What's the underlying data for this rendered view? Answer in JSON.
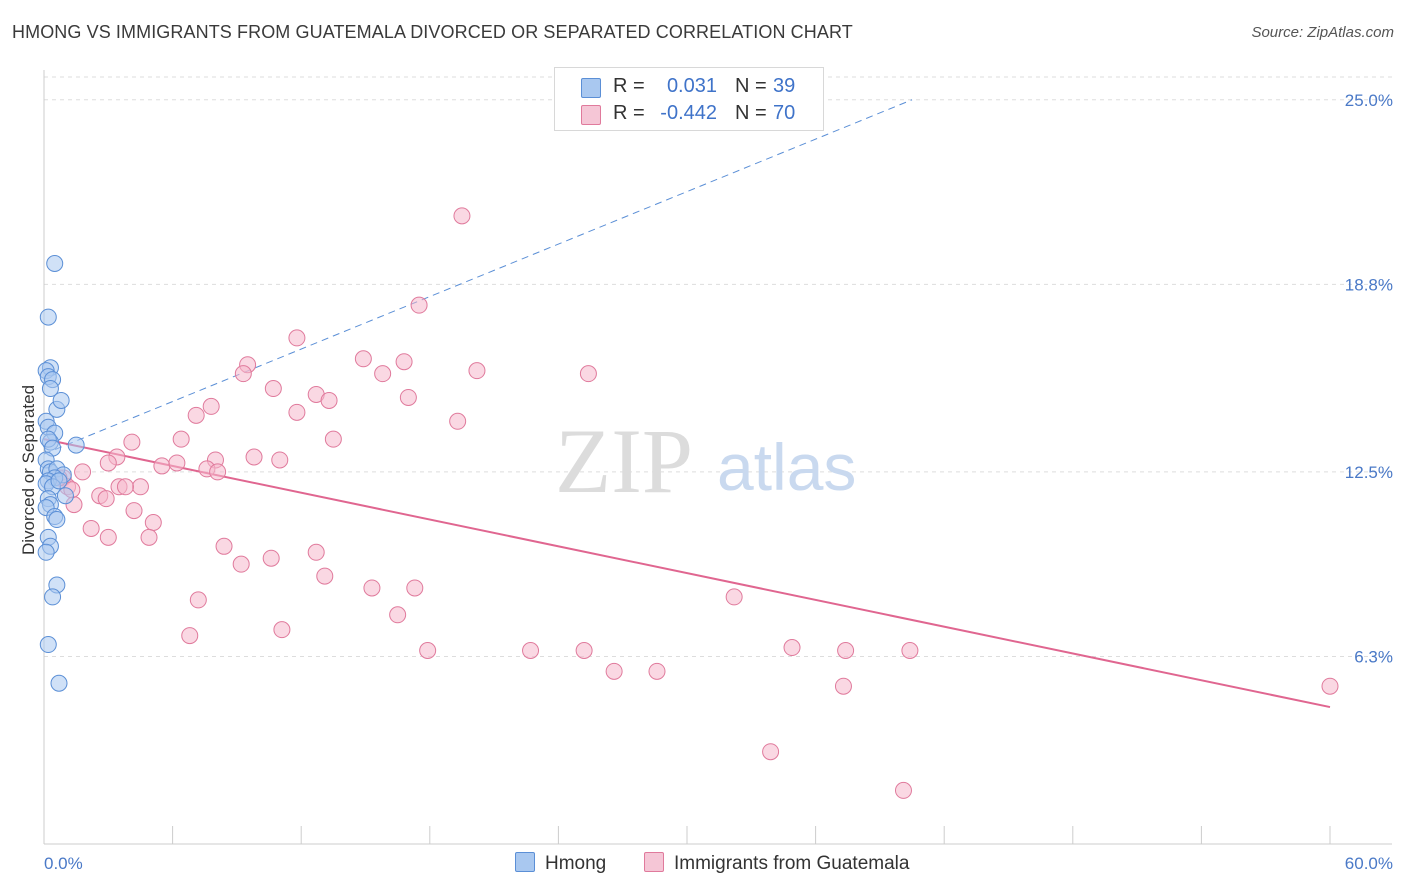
{
  "title": "HMONG VS IMMIGRANTS FROM GUATEMALA DIVORCED OR SEPARATED CORRELATION CHART",
  "source": "Source: ZipAtlas.com",
  "watermark": {
    "zip": "ZIP",
    "atlas": "atlas"
  },
  "legend": {
    "rows": [
      {
        "r_label": "R =",
        "r_value": "0.031",
        "n_label": "N =",
        "n_value": "39"
      },
      {
        "r_label": "R =",
        "r_value": "-0.442",
        "n_label": "N =",
        "n_value": "70"
      }
    ]
  },
  "bottom_legend": {
    "hmong": "Hmong",
    "guatemala": "Immigrants from Guatemala"
  },
  "colors": {
    "hmong_fill": "#a9c8f0",
    "hmong_stroke": "#5b8fd6",
    "hmong_trend": "#5b8fd6",
    "guatemala_fill": "#f5b8cc",
    "guatemala_stroke": "#e07a9c",
    "guatemala_trend": "#e06690",
    "tick_text": "#4a79c7",
    "grid": "#dddddd"
  },
  "chart_data": {
    "type": "scatter",
    "title": "HMONG VS IMMIGRANTS FROM GUATEMALA DIVORCED OR SEPARATED CORRELATION CHART",
    "xlabel": "",
    "ylabel": "Divorced or Separated",
    "xlim": [
      0,
      60
    ],
    "ylim": [
      0,
      26
    ],
    "x_tick_labels": [
      "0.0%",
      "60.0%"
    ],
    "y_ticks": [
      6.3,
      12.5,
      18.8,
      25.0
    ],
    "y_tick_labels": [
      "6.3%",
      "12.5%",
      "18.8%",
      "25.0%"
    ],
    "grid": true,
    "legend_placement": "top-center",
    "series": [
      {
        "name": "Hmong",
        "r": 0.031,
        "n": 39,
        "trend": {
          "x": [
            0,
            40.5
          ],
          "y": [
            13.1,
            25.0
          ],
          "style": "dashed"
        },
        "x": [
          0.5,
          0.2,
          0.3,
          0.1,
          0.2,
          0.4,
          0.3,
          0.6,
          0.1,
          0.2,
          0.5,
          0.8,
          1.5,
          0.3,
          0.2,
          0.4,
          0.1,
          0.2,
          0.3,
          0.6,
          0.9,
          0.5,
          0.2,
          0.1,
          0.4,
          0.7,
          1.0,
          0.2,
          0.3,
          0.1,
          0.5,
          0.6,
          0.2,
          0.3,
          0.1,
          0.6,
          0.4,
          0.2,
          0.7
        ],
        "y": [
          19.5,
          17.7,
          16.0,
          15.9,
          15.7,
          15.6,
          15.3,
          14.6,
          14.2,
          14.0,
          13.8,
          14.9,
          13.4,
          13.5,
          13.6,
          13.3,
          12.9,
          12.6,
          12.5,
          12.6,
          12.4,
          12.3,
          12.2,
          12.1,
          12.0,
          12.2,
          11.7,
          11.6,
          11.4,
          11.3,
          11.0,
          10.9,
          10.3,
          10.0,
          9.8,
          8.7,
          8.3,
          6.7,
          5.4
        ]
      },
      {
        "name": "Immigrants from Guatemala",
        "r": -0.442,
        "n": 70,
        "trend": {
          "x": [
            0,
            60
          ],
          "y": [
            13.6,
            4.6
          ],
          "style": "solid"
        },
        "x": [
          19.5,
          17.5,
          11.8,
          9.5,
          16.8,
          14.9,
          9.3,
          15.8,
          20.2,
          25.4,
          19.3,
          10.7,
          12.7,
          7.1,
          11.8,
          13.3,
          17.0,
          7.8,
          13.5,
          3.4,
          4.1,
          8.0,
          7.6,
          3.0,
          5.5,
          6.2,
          4.5,
          0.9,
          1.8,
          1.1,
          3.5,
          2.6,
          2.9,
          1.4,
          0.7,
          1.3,
          3.8,
          4.2,
          8.1,
          11.0,
          9.8,
          6.4,
          5.1,
          2.2,
          4.9,
          3.0,
          8.4,
          10.6,
          9.2,
          13.1,
          17.3,
          15.3,
          12.7,
          6.8,
          7.2,
          11.1,
          16.5,
          17.9,
          22.7,
          32.2,
          25.2,
          28.6,
          34.9,
          37.4,
          26.6,
          33.9,
          40.1,
          40.4,
          37.3,
          60.0
        ],
        "y": [
          21.1,
          18.1,
          17.0,
          16.1,
          16.2,
          16.3,
          15.8,
          15.8,
          15.9,
          15.8,
          14.2,
          15.3,
          15.1,
          14.4,
          14.5,
          14.9,
          15.0,
          14.7,
          13.6,
          13.0,
          13.5,
          12.9,
          12.6,
          12.8,
          12.7,
          12.8,
          12.0,
          12.3,
          12.5,
          12.0,
          12.0,
          11.7,
          11.6,
          11.4,
          12.3,
          11.9,
          12.0,
          11.2,
          12.5,
          12.9,
          13.0,
          13.6,
          10.8,
          10.6,
          10.3,
          10.3,
          10.0,
          9.6,
          9.4,
          9.0,
          8.6,
          8.6,
          9.8,
          7.0,
          8.2,
          7.2,
          7.7,
          6.5,
          6.5,
          8.3,
          6.5,
          5.8,
          6.6,
          6.5,
          5.8,
          3.1,
          1.8,
          6.5,
          5.3,
          5.3
        ]
      }
    ]
  }
}
